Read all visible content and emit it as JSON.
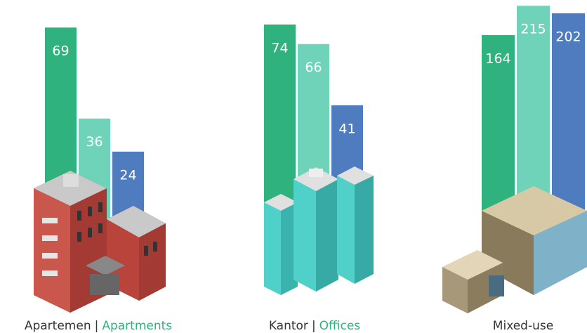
{
  "chart_data": [
    {
      "type": "bar",
      "label": [
        "Apartemen",
        "|",
        "Apartments"
      ],
      "values": [
        69,
        36,
        24
      ],
      "colors": [
        "#2fb27e",
        "#6fd3ba",
        "#4f7cbf"
      ],
      "ylim": [
        0,
        79
      ]
    },
    {
      "type": "bar",
      "label": [
        "Kantor",
        "|",
        "Offices"
      ],
      "values": [
        74,
        66,
        41
      ],
      "colors": [
        "#2fb27e",
        "#6fd3ba",
        "#4f7cbf"
      ],
      "ylim": [
        -5,
        84
      ]
    },
    {
      "type": "bar",
      "label": [
        "Mixed-use"
      ],
      "values": [
        164,
        215,
        202
      ],
      "colors": [
        "#2fb27e",
        "#6fd3ba",
        "#4f7cbf"
      ],
      "ylim": [
        -153,
        225
      ]
    }
  ]
}
